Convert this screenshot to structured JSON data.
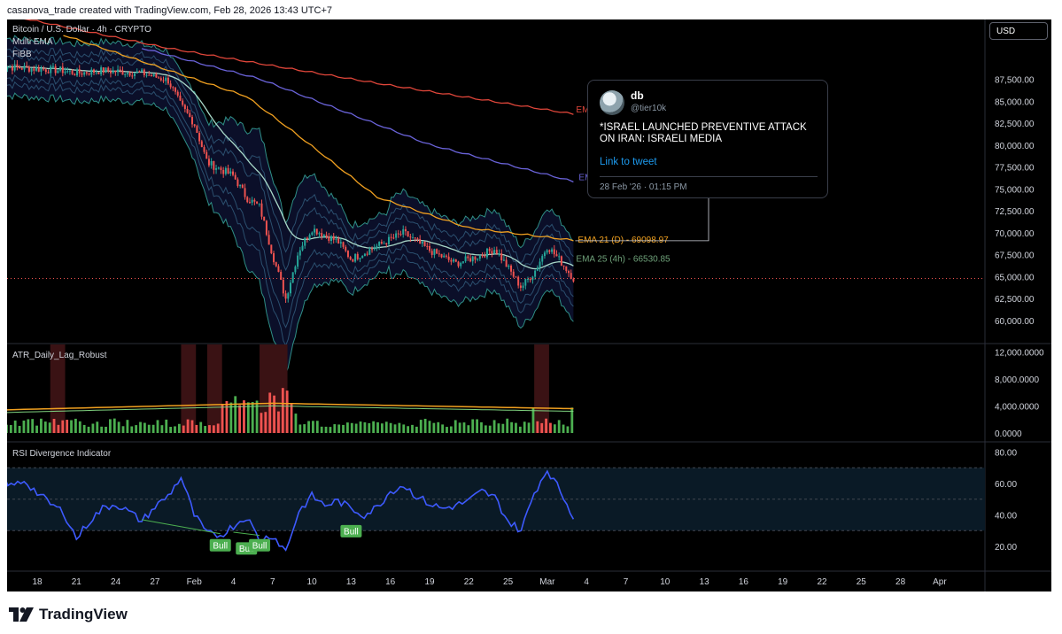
{
  "header": {
    "text": "casanova_trade created with TradingView.com, Feb 28, 2026 13:43 UTC+7"
  },
  "legend": {
    "symbol": "Bitcoin / U.S. Dollar · 4h · CRYPTO",
    "ind1": "Multi EMA",
    "ind2": "FiBB"
  },
  "currency_button": "USD",
  "tweet": {
    "name": "db",
    "handle": "@tier10k",
    "text": "*ISRAEL LAUNCHED PREVENTIVE ATTACK ON IRAN: ISRAELI MEDIA",
    "link": "Link to tweet",
    "time": "28 Feb '26 · 01:15 PM"
  },
  "footer": {
    "brand": "TradingView"
  },
  "colors": {
    "ema_red": "#e0463a",
    "ema_blue": "#6a63d9",
    "ema_orange": "#f0a020",
    "ema_green": "#6fa27a",
    "candle_up": "#26a69a",
    "candle_down": "#ef5350",
    "rsi": "#3d5afe",
    "atr_bar": "#4caf50",
    "bull_label": "#4caf50"
  },
  "chart_data": [
    {
      "type": "candlestick",
      "title": "Bitcoin / U.S. Dollar · 4h · CRYPTO",
      "price_axis_ticks": [
        "87,500.00",
        "85,000.00",
        "82,500.00",
        "80,000.00",
        "77,500.00",
        "75,000.00",
        "72,500.00",
        "70,000.00",
        "67,500.00",
        "65,000.00",
        "62,500.00",
        "60,000.00"
      ],
      "ylim": [
        59000,
        90500
      ],
      "x_ticks": [
        "18",
        "21",
        "24",
        "27",
        "Feb",
        "4",
        "7",
        "10",
        "13",
        "16",
        "19",
        "22",
        "25",
        "Mar",
        "4",
        "7",
        "10",
        "13",
        "16",
        "19",
        "22",
        "25",
        "28",
        "Apr"
      ],
      "close_path": [
        [
          "Jan 15",
          89000
        ],
        [
          "Jan 18",
          88700
        ],
        [
          "Jan 20",
          88500
        ],
        [
          "Jan 21",
          88200
        ],
        [
          "Jan 23",
          88500
        ],
        [
          "Jan 26",
          88200
        ],
        [
          "Jan 28",
          87400
        ],
        [
          "Jan 29",
          84500
        ],
        [
          "Jan 30",
          82500
        ],
        [
          "Jan 31",
          78000
        ],
        [
          "Feb 2",
          76500
        ],
        [
          "Feb 3",
          74000
        ],
        [
          "Feb 4",
          73000
        ],
        [
          "Feb 5",
          67500
        ],
        [
          "Feb 6",
          62500
        ],
        [
          "Feb 7",
          68000
        ],
        [
          "Feb 8",
          70500
        ],
        [
          "Feb 10",
          69000
        ],
        [
          "Feb 11",
          67000
        ],
        [
          "Feb 13",
          68500
        ],
        [
          "Feb 15",
          70000
        ],
        [
          "Feb 17",
          68000
        ],
        [
          "Feb 19",
          66500
        ],
        [
          "Feb 21",
          67500
        ],
        [
          "Feb 22",
          68200
        ],
        [
          "Feb 23",
          66000
        ],
        [
          "Feb 24",
          63800
        ],
        [
          "Feb 25",
          65500
        ],
        [
          "Feb 26",
          68500
        ],
        [
          "Feb 27",
          66800
        ],
        [
          "Feb 28",
          64800
        ]
      ],
      "series": [
        {
          "name": "EMA",
          "label": "EMA",
          "path": [
            [
              "Jan 15",
              95000
            ],
            [
              "Jan 28",
              91000
            ],
            [
              "Feb 13",
              87000
            ],
            [
              "Feb 28",
              83500
            ]
          ]
        },
        {
          "name": "EMA",
          "label": "EM",
          "path": [
            [
              "Jan 26",
              91000
            ],
            [
              "Feb 4",
              87500
            ],
            [
              "Feb 17",
              80000
            ],
            [
              "Feb 28",
              75800
            ]
          ]
        },
        {
          "name": "EMA 21 (D)",
          "label": "EMA 21 (D) - 69098.97",
          "value": 69098.97
        },
        {
          "name": "EMA 25 (4h)",
          "label": "EMA 25 (4h) - 66530.85",
          "value": 66530.85
        }
      ]
    },
    {
      "type": "bar",
      "title": "ATR_Daily_Lag_Robust",
      "axis_ticks": [
        "12,000.0000",
        "8,000.0000",
        "4,000.0000",
        "0.0000"
      ],
      "ylim": [
        0,
        12000
      ],
      "series": [
        {
          "name": "ATR",
          "peaks": [
            [
              "Feb 2",
              7300
            ],
            [
              "Feb 5",
              10000
            ],
            [
              "Feb 6",
              11000
            ],
            [
              "Feb 25",
              4200
            ],
            [
              "Feb 28",
              4600
            ]
          ]
        },
        {
          "name": "ATR average",
          "path": [
            [
              "Jan 15",
              3400
            ],
            [
              "Feb 5",
              4400
            ],
            [
              "Feb 28",
              3600
            ]
          ]
        }
      ]
    },
    {
      "type": "line",
      "title": "RSI Divergence Indicator",
      "axis_ticks": [
        "80.00",
        "60.00",
        "40.00",
        "20.00"
      ],
      "ylim": [
        10,
        81
      ],
      "bands": [
        30,
        50,
        70
      ],
      "series": [
        {
          "name": "RSI",
          "path": [
            [
              "Jan 15",
              68
            ],
            [
              "Jan 16",
              58
            ],
            [
              "Jan 17",
              62
            ],
            [
              "Jan 18",
              54
            ],
            [
              "Jan 19",
              47
            ],
            [
              "Jan 20",
              42
            ],
            [
              "Jan 21",
              25
            ],
            [
              "Jan 22",
              36
            ],
            [
              "Jan 23",
              44
            ],
            [
              "Jan 24",
              47
            ],
            [
              "Jan 25",
              42
            ],
            [
              "Jan 26",
              36
            ],
            [
              "Jan 27",
              45
            ],
            [
              "Jan 28",
              52
            ],
            [
              "Jan 29",
              64
            ],
            [
              "Jan 30",
              40
            ],
            [
              "Jan 31",
              28
            ],
            [
              "Feb 1",
              27
            ],
            [
              "Feb 2",
              33
            ],
            [
              "Feb 3",
              39
            ],
            [
              "Feb 4",
              24
            ],
            [
              "Feb 5",
              27
            ],
            [
              "Feb 6",
              17
            ],
            [
              "Feb 7",
              42
            ],
            [
              "Feb 8",
              52
            ],
            [
              "Feb 9",
              46
            ],
            [
              "Feb 10",
              49
            ],
            [
              "Feb 11",
              44
            ],
            [
              "Feb 12",
              40
            ],
            [
              "Feb 13",
              45
            ],
            [
              "Feb 14",
              55
            ],
            [
              "Feb 15",
              59
            ],
            [
              "Feb 16",
              52
            ],
            [
              "Feb 17",
              47
            ],
            [
              "Feb 18",
              44
            ],
            [
              "Feb 19",
              46
            ],
            [
              "Feb 20",
              49
            ],
            [
              "Feb 21",
              55
            ],
            [
              "Feb 22",
              51
            ],
            [
              "Feb 23",
              36
            ],
            [
              "Feb 24",
              30
            ],
            [
              "Feb 25",
              54
            ],
            [
              "Feb 26",
              69
            ],
            [
              "Feb 27",
              55
            ],
            [
              "Feb 28",
              39
            ]
          ]
        }
      ],
      "annotations": [
        {
          "label": "Bull",
          "date": "Feb 1",
          "value": 28
        },
        {
          "label": "Bull",
          "date": "Feb 3",
          "value": 26
        },
        {
          "label": "Bull",
          "date": "Feb 4",
          "value": 28
        },
        {
          "label": "Bull",
          "date": "Feb 11",
          "value": 37
        }
      ]
    }
  ]
}
